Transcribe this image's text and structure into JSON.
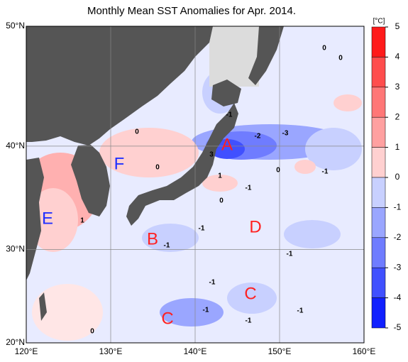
{
  "title": "Monthly Mean SST Anomalies for Apr. 2014.",
  "map": {
    "lon_ticks": [
      {
        "value": 120,
        "label": "120°E"
      },
      {
        "value": 130,
        "label": "130°E"
      },
      {
        "value": 140,
        "label": "140°E"
      },
      {
        "value": 150,
        "label": "150°E"
      },
      {
        "value": 160,
        "label": "160°E"
      }
    ],
    "lat_ticks": [
      {
        "value": 50,
        "label": "50°N"
      },
      {
        "value": 40,
        "label": "40°N"
      },
      {
        "value": 30,
        "label": "30°N"
      },
      {
        "value": 20,
        "label": "20°N"
      }
    ],
    "lonlim": [
      120,
      160
    ],
    "latlim": [
      20,
      50
    ],
    "regions": [
      {
        "label": "A",
        "color": "#ff2020"
      },
      {
        "label": "B",
        "color": "#ff2020"
      },
      {
        "label": "C",
        "color": "#ff2020"
      },
      {
        "label": "C",
        "color": "#ff2020"
      },
      {
        "label": "D",
        "color": "#ff2020"
      },
      {
        "label": "E",
        "color": "#2030ff"
      },
      {
        "label": "F",
        "color": "#2030ff"
      }
    ],
    "contour_labels": [
      "0",
      "0",
      "0",
      "0",
      "-1",
      "-2",
      "-3",
      "3",
      "0",
      "-1",
      "1",
      "-1",
      "0",
      "-1",
      "-1",
      "-1",
      "-1",
      "-1",
      "-1",
      "-1",
      "0",
      "1"
    ]
  },
  "colorbar": {
    "unit": "[°C]",
    "ticks": [
      5,
      4,
      3,
      2,
      1,
      0,
      -1,
      -2,
      -3,
      -4,
      -5
    ],
    "colors": [
      "#ff1a1a",
      "#ff4d4d",
      "#ff7777",
      "#ffa0a0",
      "#ffd0d0",
      "#ffffff",
      "#c8d0ff",
      "#9aa6ff",
      "#6f7cff",
      "#4050ff",
      "#1020ff"
    ]
  }
}
